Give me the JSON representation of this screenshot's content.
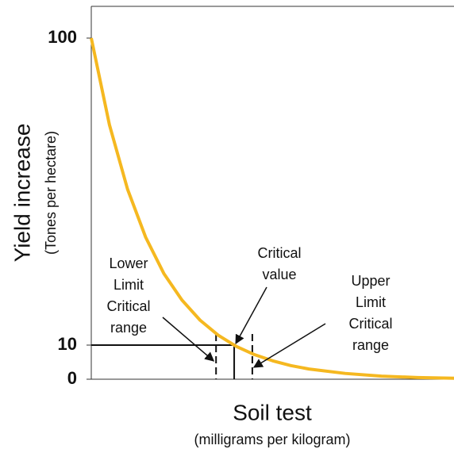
{
  "chart_data": {
    "type": "line",
    "y_label": "Yield increase",
    "y_sublabel": "(Tones per hectare)",
    "x_label": "Soil test",
    "x_sublabel": "(milligrams per kilogram)",
    "x": [
      0,
      5,
      10,
      15,
      20,
      25,
      30,
      35,
      40,
      45,
      50,
      55,
      60,
      70,
      80,
      90,
      100
    ],
    "series": [
      {
        "color": "#f5b820",
        "values": [
          100,
          74.6,
          55.7,
          41.6,
          31.0,
          23.2,
          17.3,
          12.9,
          9.6,
          7.2,
          5.4,
          4.0,
          3.0,
          1.7,
          0.9,
          0.5,
          0.3
        ]
      }
    ],
    "xlim": [
      0,
      100
    ],
    "ylim": [
      0,
      109.3
    ],
    "yticks": [
      0,
      10,
      100
    ],
    "critical_yield": 10,
    "critical_value": 39.4,
    "critical_range": [
      34.4,
      44.4
    ],
    "annotations": [
      {
        "lines": [
          "Lower",
          "Limit",
          "Critical",
          "range"
        ]
      },
      {
        "lines": [
          "Critical",
          "value"
        ]
      },
      {
        "lines": [
          "Upper",
          "Limit",
          "Critical",
          "range"
        ]
      }
    ]
  }
}
